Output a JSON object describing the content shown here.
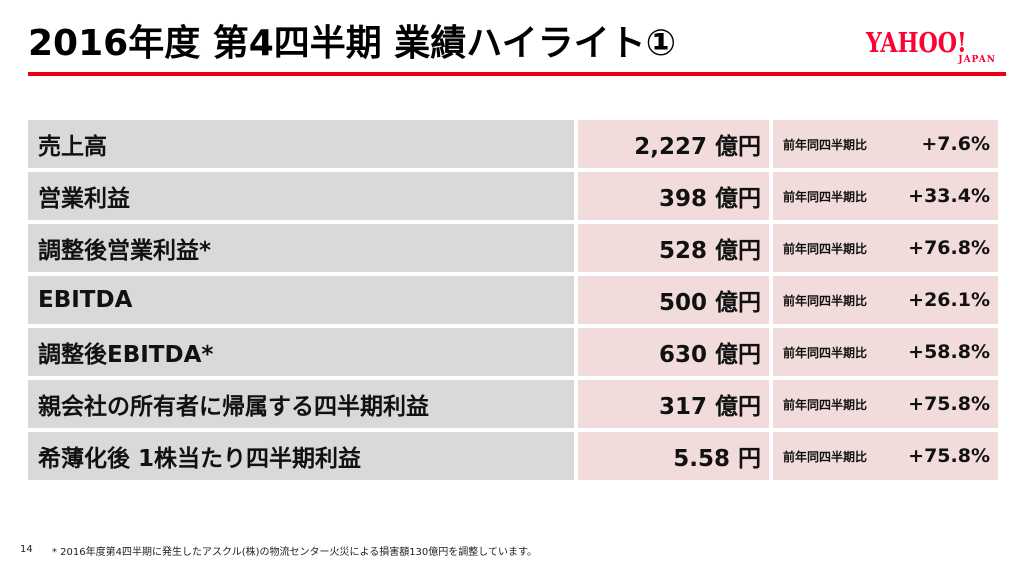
{
  "header": {
    "title": "2016年度 第4四半期 業績ハイライト①",
    "logo_main": "YAHOO!",
    "logo_sub": "JAPAN"
  },
  "colors": {
    "accent_red": "#e60012",
    "logo_red": "#ff0033",
    "label_bg": "#d9d9d9",
    "value_bg": "#f2dcdb"
  },
  "rows": [
    {
      "label": "売上高",
      "value": "2,227 億円",
      "compare_label": "前年同四半期比",
      "compare_value": "+7.6%"
    },
    {
      "label": "営業利益",
      "value": "398 億円",
      "compare_label": "前年同四半期比",
      "compare_value": "+33.4%"
    },
    {
      "label": "調整後営業利益*",
      "value": "528 億円",
      "compare_label": "前年同四半期比",
      "compare_value": "+76.8%"
    },
    {
      "label": "EBITDA",
      "value": "500 億円",
      "compare_label": "前年同四半期比",
      "compare_value": "+26.1%"
    },
    {
      "label": "調整後EBITDA*",
      "value": "630 億円",
      "compare_label": "前年同四半期比",
      "compare_value": "+58.8%"
    },
    {
      "label": "親会社の所有者に帰属する四半期利益",
      "value": "317 億円",
      "compare_label": "前年同四半期比",
      "compare_value": "+75.8%"
    },
    {
      "label": "希薄化後 1株当たり四半期利益",
      "value": "5.58 円",
      "compare_label": "前年同四半期比",
      "compare_value": "+75.8%"
    }
  ],
  "footer": {
    "page_number": "14",
    "footnote": "* 2016年度第4四半期に発生したアスクル(株)の物流センター火災による損害額130億円を調整しています。"
  }
}
